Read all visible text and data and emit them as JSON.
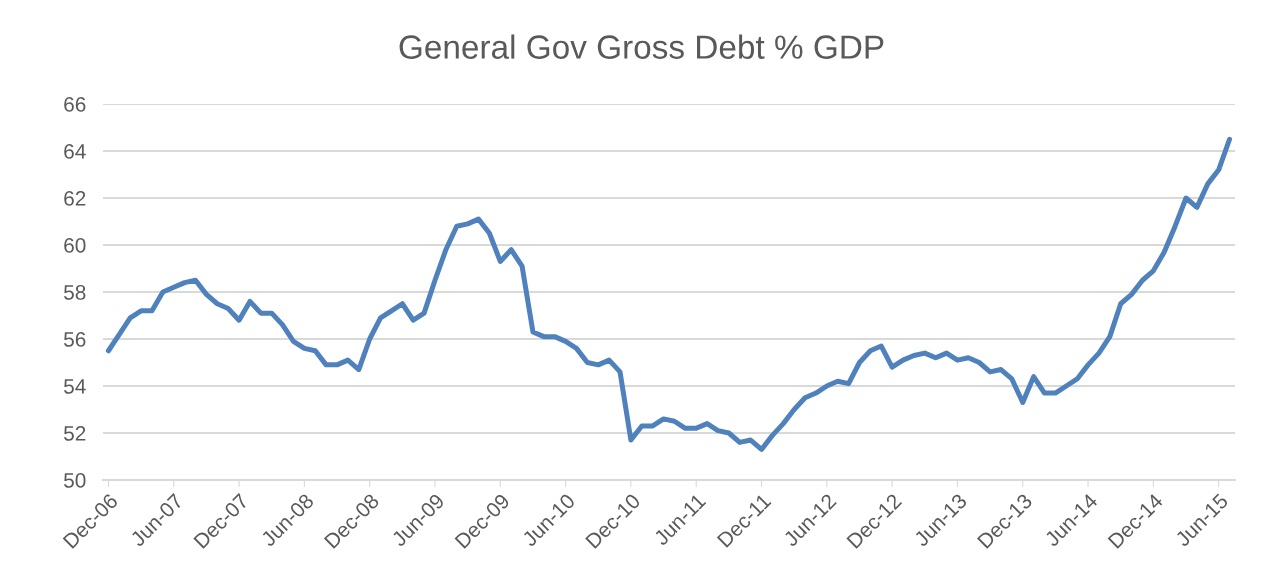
{
  "chart_data": {
    "type": "line",
    "title": "General Gov Gross Debt % GDP",
    "categories": [
      "Dec-06",
      null,
      null,
      null,
      null,
      null,
      "Jun-07",
      null,
      null,
      null,
      null,
      null,
      "Dec-07",
      null,
      null,
      null,
      null,
      null,
      "Jun-08",
      null,
      null,
      null,
      null,
      null,
      "Dec-08",
      null,
      null,
      null,
      null,
      null,
      "Jun-09",
      null,
      null,
      null,
      null,
      null,
      "Dec-09",
      null,
      null,
      null,
      null,
      null,
      "Jun-10",
      null,
      null,
      null,
      null,
      null,
      "Dec-10",
      null,
      null,
      null,
      null,
      null,
      "Jun-11",
      null,
      null,
      null,
      null,
      null,
      "Dec-11",
      null,
      null,
      null,
      null,
      null,
      "Jun-12",
      null,
      null,
      null,
      null,
      null,
      "Dec-12",
      null,
      null,
      null,
      null,
      null,
      "Jun-13",
      null,
      null,
      null,
      null,
      null,
      "Dec-13",
      null,
      null,
      null,
      null,
      null,
      "Jun-14",
      null,
      null,
      null,
      null,
      null,
      "Dec-14",
      null,
      null,
      null,
      null,
      null,
      "Jun-15",
      null
    ],
    "series": [
      {
        "color": "#4f81bd",
        "values": [
          55.5,
          56.2,
          56.9,
          57.2,
          57.2,
          58.0,
          58.2,
          58.4,
          58.5,
          57.9,
          57.5,
          57.3,
          56.8,
          57.6,
          57.1,
          57.1,
          56.6,
          55.9,
          55.6,
          55.5,
          54.9,
          54.9,
          55.1,
          54.7,
          56.0,
          56.9,
          57.2,
          57.5,
          56.8,
          57.1,
          58.5,
          59.8,
          60.8,
          60.9,
          61.1,
          60.5,
          59.3,
          59.8,
          59.1,
          56.3,
          56.1,
          56.1,
          55.9,
          55.6,
          55.0,
          54.9,
          55.1,
          54.6,
          51.7,
          52.3,
          52.3,
          52.6,
          52.5,
          52.2,
          52.2,
          52.4,
          52.1,
          52.0,
          51.6,
          51.7,
          51.3,
          51.9,
          52.4,
          53.0,
          53.5,
          53.7,
          54.0,
          54.2,
          54.1,
          55.0,
          55.5,
          55.7,
          54.8,
          55.1,
          55.3,
          55.4,
          55.2,
          55.4,
          55.1,
          55.2,
          55.0,
          54.6,
          54.7,
          54.3,
          53.3,
          54.4,
          53.7,
          53.7,
          54.0,
          54.3,
          54.9,
          55.4,
          56.1,
          57.5,
          57.9,
          58.5,
          58.9,
          59.7,
          60.8,
          62.0,
          61.6,
          62.6,
          63.2,
          64.5
        ]
      }
    ],
    "ylim": [
      50,
      66
    ],
    "yticks": [
      50,
      52,
      54,
      56,
      58,
      60,
      62,
      64,
      66
    ],
    "grid": "y",
    "legend": false,
    "marker": "none",
    "line_style": "solid"
  }
}
